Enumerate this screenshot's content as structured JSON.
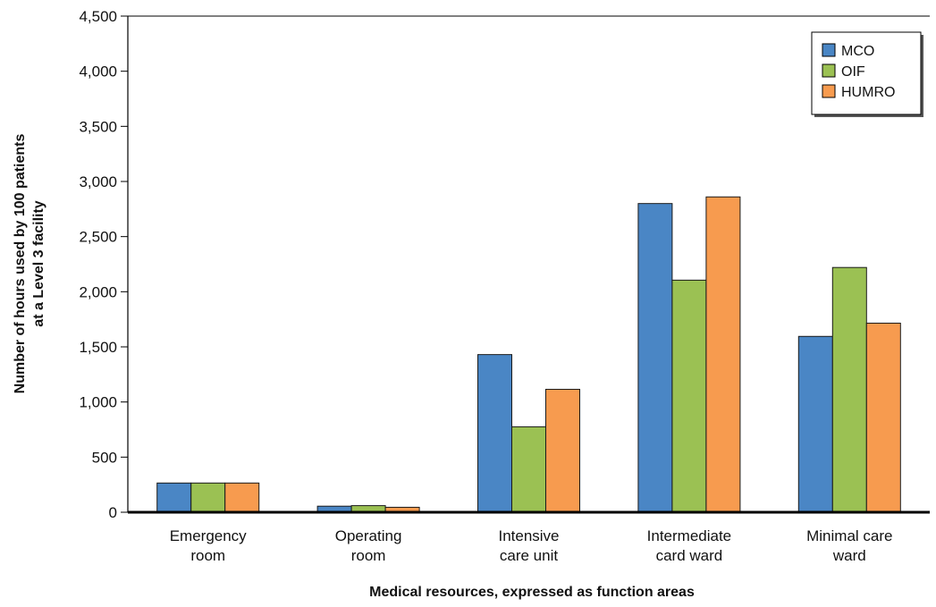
{
  "chart_data": {
    "type": "bar",
    "title": "",
    "xlabel": "Medical resources, expressed as function areas",
    "ylabel_lines": [
      "Number of hours used by 100 patients",
      "at a Level 3 facility"
    ],
    "ylim": [
      0,
      4500
    ],
    "yticks": [
      0,
      500,
      1000,
      1500,
      2000,
      2500,
      3000,
      3500,
      4000,
      4500
    ],
    "ytick_labels": [
      "0",
      "500",
      "1,000",
      "1,500",
      "2,000",
      "2,500",
      "3,000",
      "3,500",
      "4,000",
      "4,500"
    ],
    "categories": [
      [
        "Emergency",
        "room"
      ],
      [
        "Operating",
        "room"
      ],
      [
        "Intensive",
        "care unit"
      ],
      [
        "Intermediate",
        "card ward"
      ],
      [
        "Minimal care",
        "ward"
      ]
    ],
    "series": [
      {
        "name": "MCO",
        "color": "#4a86c5",
        "values": [
          265,
          55,
          1430,
          2800,
          1595
        ]
      },
      {
        "name": "OIF",
        "color": "#9bc153",
        "values": [
          265,
          60,
          775,
          2105,
          2220
        ]
      },
      {
        "name": "HUMRO",
        "color": "#f79b4f",
        "values": [
          265,
          45,
          1115,
          2860,
          1715
        ]
      }
    ],
    "legend_position": "top-right",
    "grid": false
  }
}
